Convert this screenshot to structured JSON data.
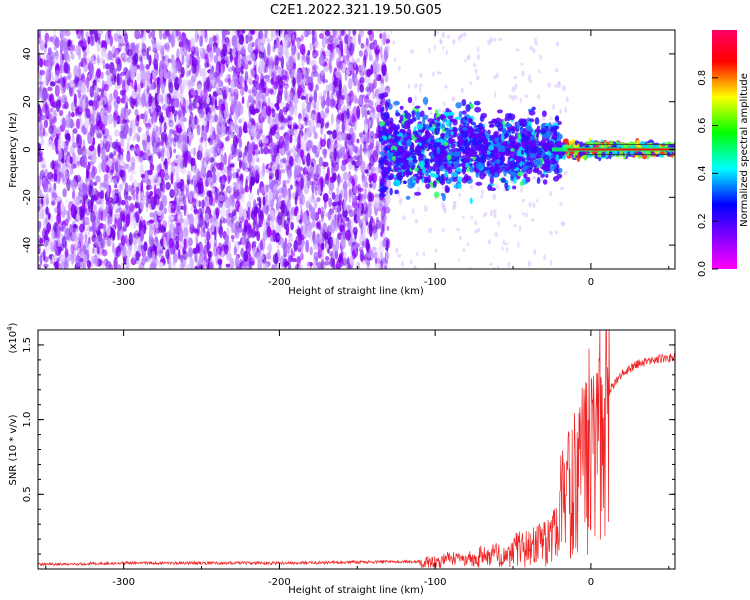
{
  "title": "C2E1.2022.321.19.50.G05",
  "chart_data": [
    {
      "type": "heatmap",
      "xlabel": "Height of straight line (km)",
      "ylabel": "Frequency (Hz)",
      "xlim": [
        -355,
        54
      ],
      "ylim": [
        -50,
        50
      ],
      "x_ticks": [
        -300,
        -200,
        -100,
        0
      ],
      "y_ticks": [
        -40,
        -20,
        0,
        20,
        40
      ],
      "colorbar": {
        "label": "Normalized spectral amplitude",
        "range": [
          0,
          1
        ],
        "ticks": [
          "0.0",
          "0.2",
          "0.4",
          "0.6",
          "0.8"
        ],
        "colormap": [
          "#ff00ff",
          "#9000ff",
          "#0000ff",
          "#00ffff",
          "#00ff00",
          "#ffff00",
          "#ff0000",
          "#ff0066"
        ]
      },
      "features": {
        "broadband_noise_x_range": [
          -355,
          -135
        ],
        "signal_band_x_range": [
          -135,
          54
        ],
        "signal_center_hz": 0
      }
    },
    {
      "type": "line",
      "xlabel": "Height of straight line (km)",
      "ylabel": "SNR (10 * v/v)",
      "y_multiplier": "(x10",
      "y_multiplier_exp": "4",
      "y_multiplier_close": ")",
      "xlim": [
        -355,
        54
      ],
      "ylim": [
        0,
        1.6
      ],
      "x_ticks": [
        -300,
        -200,
        -100,
        0
      ],
      "y_ticks": [
        "0.5",
        "1.0",
        "1.5"
      ],
      "y_tick_values": [
        0.5,
        1.0,
        1.5
      ],
      "line_color": "#ee2222",
      "envelope": {
        "x": [
          -355,
          -300,
          -200,
          -110,
          -100,
          -80,
          -60,
          -40,
          -25,
          -15,
          -8,
          -3,
          0,
          5,
          10,
          15,
          20,
          30,
          40,
          54
        ],
        "y": [
          0.03,
          0.04,
          0.04,
          0.05,
          0.08,
          0.12,
          0.17,
          0.26,
          0.38,
          0.55,
          0.78,
          0.92,
          1.0,
          1.08,
          1.16,
          1.24,
          1.31,
          1.37,
          1.4,
          1.42
        ]
      }
    }
  ]
}
